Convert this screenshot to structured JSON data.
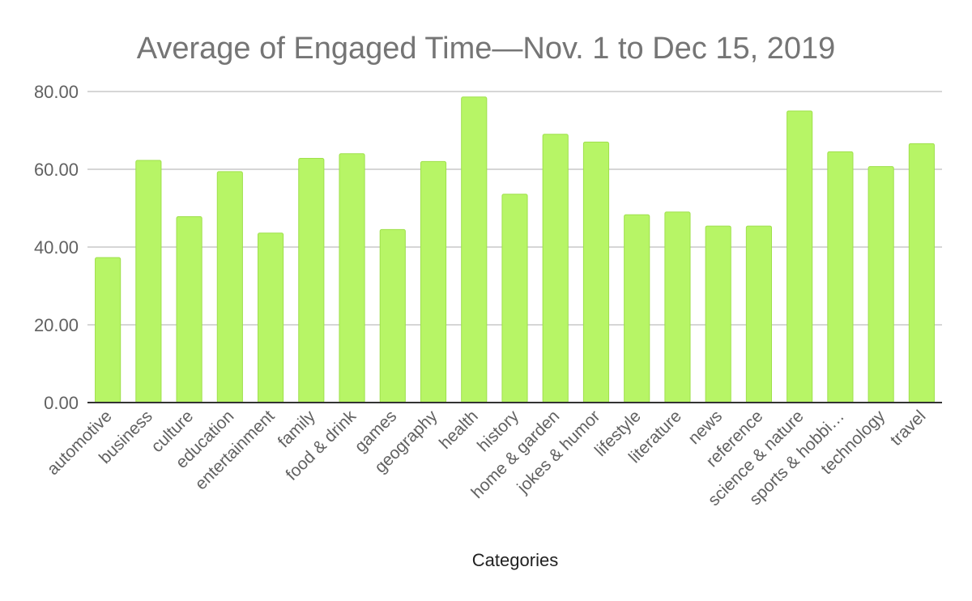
{
  "chart_data": {
    "type": "bar",
    "title": "Average of Engaged Time—Nov. 1 to Dec 15, 2019",
    "xlabel": "Categories",
    "ylabel": "",
    "ylim": [
      0,
      80
    ],
    "yticks": [
      0,
      20,
      40,
      60,
      80
    ],
    "ytick_labels": [
      "0.00",
      "20.00",
      "40.00",
      "60.00",
      "80.00"
    ],
    "grid": true,
    "bar_color": "#b7f566",
    "bar_edge_color": "#9fe04c",
    "categories": [
      "automotive",
      "business",
      "culture",
      "education",
      "entertainment",
      "family",
      "food & drink",
      "games",
      "geography",
      "health",
      "history",
      "home & garden",
      "jokes & humor",
      "lifestyle",
      "literature",
      "news",
      "reference",
      "science & nature",
      "sports & hobbi…",
      "technology",
      "travel"
    ],
    "values": [
      37.3,
      62.3,
      47.8,
      59.4,
      43.6,
      62.8,
      64.0,
      44.5,
      62.0,
      78.6,
      53.6,
      69.0,
      67.0,
      48.3,
      49.0,
      45.4,
      45.4,
      75.0,
      64.5,
      60.7,
      66.6
    ]
  }
}
